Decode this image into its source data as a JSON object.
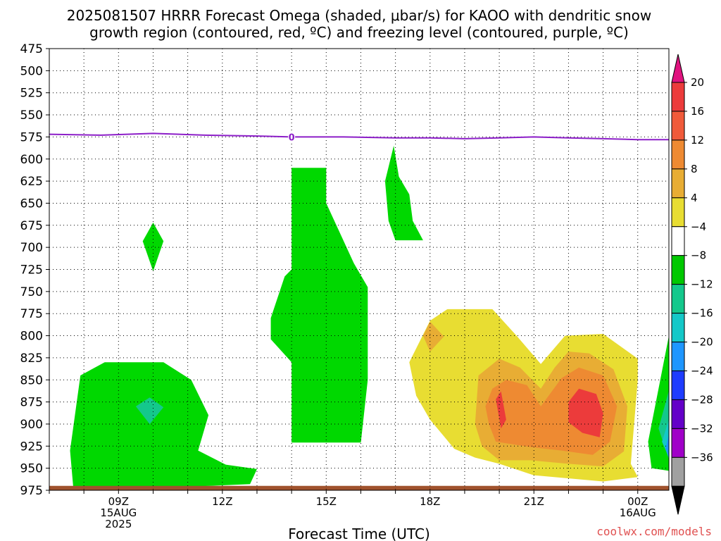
{
  "title": {
    "line1": "2025081507 HRRR Forecast Omega (shaded, μbar/s) for KAOO with dendritic snow",
    "line2": "growth region (contoured, red, ºC) and freezing level (contoured, purple, ºC)"
  },
  "credit": "coolwx.com/models",
  "chart_data": {
    "type": "contour",
    "title": "2025081507 HRRR Forecast Omega (shaded, μbar/s) for KAOO with dendritic snow growth region (contoured, red, ºC) and freezing level (contoured, purple, ºC)",
    "xlabel": "Forecast Time (UTC)",
    "ylabel": "",
    "x_hours": [
      7,
      8,
      9,
      10,
      11,
      12,
      13,
      14,
      15,
      16,
      17,
      18,
      19,
      20,
      21,
      22,
      23,
      24,
      25
    ],
    "xlim": [
      7.0,
      24.9
    ],
    "ylim_hpa": [
      975,
      475
    ],
    "x_ticks": [
      {
        "hour": 9,
        "lines": [
          "09Z",
          "15AUG",
          "2025"
        ]
      },
      {
        "hour": 12,
        "lines": [
          "12Z"
        ]
      },
      {
        "hour": 15,
        "lines": [
          "15Z"
        ]
      },
      {
        "hour": 18,
        "lines": [
          "18Z"
        ]
      },
      {
        "hour": 21,
        "lines": [
          "21Z"
        ]
      },
      {
        "hour": 24,
        "lines": [
          "00Z",
          "16AUG"
        ]
      }
    ],
    "y_ticks": [
      475,
      500,
      525,
      550,
      575,
      600,
      625,
      650,
      675,
      700,
      725,
      750,
      775,
      800,
      825,
      850,
      875,
      900,
      925,
      950,
      975
    ],
    "colorbar": {
      "labels": [
        "20",
        "16",
        "12",
        "8",
        "4",
        "−4",
        "−8",
        "−12",
        "−16",
        "−20",
        "−24",
        "−28",
        "−32",
        "−36"
      ],
      "colors": [
        "#ec3b3b",
        "#f05a3a",
        "#ee8a32",
        "#e8ad34",
        "#e8dd32",
        "#ffffff",
        "#00c800",
        "#14c88c",
        "#14c8c8",
        "#1e96ff",
        "#1e3cff",
        "#6400c8",
        "#a000c8",
        "#a0a0a0"
      ],
      "top_color": "#e0137f",
      "bottom_color": "#000000"
    },
    "freezing_level": {
      "color": "#8c1ec8",
      "label": "0",
      "label_at": [
        14.0,
        575
      ],
      "points": [
        [
          7.0,
          572
        ],
        [
          8.5,
          573
        ],
        [
          10.0,
          571
        ],
        [
          11.5,
          573
        ],
        [
          13.0,
          574
        ],
        [
          14.0,
          575
        ],
        [
          15.5,
          575
        ],
        [
          17.0,
          576
        ],
        [
          18.0,
          576
        ],
        [
          19.0,
          577
        ],
        [
          20.0,
          576
        ],
        [
          21.0,
          575
        ],
        [
          22.0,
          576
        ],
        [
          23.0,
          577
        ],
        [
          24.0,
          578
        ],
        [
          24.9,
          578
        ]
      ]
    },
    "ground_color": "#a0522d",
    "omega_regions": [
      {
        "level": "-4 to -8",
        "color": "#00d800",
        "points": [
          [
            7.7,
            975
          ],
          [
            7.6,
            930
          ],
          [
            7.9,
            845
          ],
          [
            8.6,
            830
          ],
          [
            10.3,
            830
          ],
          [
            11.1,
            850
          ],
          [
            11.6,
            890
          ],
          [
            11.3,
            930
          ],
          [
            12.1,
            946
          ],
          [
            13.0,
            951
          ],
          [
            12.8,
            968
          ],
          [
            8.7,
            975
          ]
        ]
      },
      {
        "level": "-8 to -12",
        "color": "#14c88c",
        "points": [
          [
            9.5,
            880
          ],
          [
            9.9,
            870
          ],
          [
            10.3,
            881
          ],
          [
            9.9,
            900
          ]
        ]
      },
      {
        "level": "-4 to -8",
        "color": "#00d800",
        "points": [
          [
            9.7,
            693
          ],
          [
            10.0,
            672
          ],
          [
            10.3,
            693
          ],
          [
            10.0,
            727
          ]
        ]
      },
      {
        "level": "-4 to -8",
        "color": "#00d800",
        "points": [
          [
            14.0,
            610
          ],
          [
            15.0,
            610
          ],
          [
            15.0,
            650
          ],
          [
            15.8,
            718
          ],
          [
            16.2,
            745
          ],
          [
            16.2,
            850
          ],
          [
            16.0,
            921
          ],
          [
            14.0,
            921
          ],
          [
            14.0,
            830
          ],
          [
            13.4,
            804
          ],
          [
            13.4,
            780
          ],
          [
            13.8,
            733
          ],
          [
            14.0,
            725
          ]
        ]
      },
      {
        "level": "-4 to -8",
        "color": "#00d800",
        "points": [
          [
            16.7,
            625
          ],
          [
            16.95,
            585
          ],
          [
            17.1,
            620
          ],
          [
            17.4,
            640
          ],
          [
            17.5,
            670
          ],
          [
            17.8,
            692
          ],
          [
            17.0,
            692
          ],
          [
            16.8,
            670
          ]
        ]
      },
      {
        "level": "-4 to -8",
        "color": "#00d800",
        "points": [
          [
            24.9,
            800
          ],
          [
            24.6,
            860
          ],
          [
            24.3,
            920
          ],
          [
            24.4,
            950
          ],
          [
            24.9,
            953
          ]
        ]
      },
      {
        "level": "-8 to -12",
        "color": "#14c88c",
        "points": [
          [
            24.9,
            862
          ],
          [
            24.6,
            905
          ],
          [
            24.9,
            940
          ]
        ]
      },
      {
        "level": "-12 to -16",
        "color": "#14c8c8",
        "points": [
          [
            24.9,
            895
          ],
          [
            24.7,
            920
          ],
          [
            24.9,
            938
          ]
        ]
      },
      {
        "level": "-16 to -20",
        "color": "#1e96ff",
        "points": [
          [
            24.9,
            912
          ],
          [
            24.8,
            928
          ],
          [
            24.9,
            938
          ]
        ]
      },
      {
        "level": "4 to 8",
        "color": "#e8dd32",
        "points": [
          [
            18.0,
            783
          ],
          [
            18.5,
            770
          ],
          [
            19.8,
            770
          ],
          [
            20.5,
            800
          ],
          [
            21.2,
            832
          ],
          [
            21.9,
            800
          ],
          [
            23.0,
            798
          ],
          [
            24.0,
            826
          ],
          [
            24.0,
            850
          ],
          [
            23.8,
            945
          ],
          [
            24.0,
            960
          ],
          [
            23.0,
            965
          ],
          [
            21.0,
            958
          ],
          [
            20.0,
            945
          ],
          [
            19.3,
            938
          ],
          [
            18.7,
            928
          ],
          [
            18.0,
            895
          ],
          [
            17.6,
            868
          ],
          [
            17.4,
            830
          ]
        ]
      },
      {
        "level": "8 to 12",
        "color": "#e8ad34",
        "points": [
          [
            17.8,
            800
          ],
          [
            18.0,
            784
          ],
          [
            18.4,
            801
          ],
          [
            18.0,
            818
          ]
        ]
      },
      {
        "level": "8 to 12",
        "color": "#e8ad34",
        "points": [
          [
            19.3,
            900
          ],
          [
            19.4,
            845
          ],
          [
            20.0,
            826
          ],
          [
            20.6,
            836
          ],
          [
            21.2,
            860
          ],
          [
            21.6,
            836
          ],
          [
            22.0,
            818
          ],
          [
            22.6,
            820
          ],
          [
            23.3,
            838
          ],
          [
            23.7,
            880
          ],
          [
            23.6,
            931
          ],
          [
            23.0,
            948
          ],
          [
            22.0,
            945
          ],
          [
            20.9,
            941
          ],
          [
            20.0,
            941
          ],
          [
            19.5,
            925
          ]
        ]
      },
      {
        "level": "12 to 16",
        "color": "#ee8a32",
        "points": [
          [
            19.6,
            880
          ],
          [
            19.8,
            860
          ],
          [
            20.2,
            850
          ],
          [
            20.8,
            856
          ],
          [
            21.2,
            880
          ],
          [
            21.8,
            848
          ],
          [
            22.3,
            836
          ],
          [
            23.0,
            845
          ],
          [
            23.4,
            880
          ],
          [
            23.2,
            920
          ],
          [
            22.7,
            935
          ],
          [
            21.8,
            930
          ],
          [
            20.9,
            926
          ],
          [
            19.9,
            920
          ],
          [
            19.7,
            900
          ]
        ]
      },
      {
        "level": "16 to 20",
        "color": "#ec3b3b",
        "points": [
          [
            19.9,
            872
          ],
          [
            20.05,
            863
          ],
          [
            20.2,
            895
          ],
          [
            20.05,
            905
          ]
        ]
      },
      {
        "level": "16 to 20",
        "color": "#ec3b3b",
        "points": [
          [
            22.0,
            875
          ],
          [
            22.3,
            860
          ],
          [
            22.8,
            866
          ],
          [
            23.0,
            888
          ],
          [
            22.9,
            915
          ],
          [
            22.4,
            910
          ],
          [
            22.0,
            898
          ]
        ]
      }
    ]
  }
}
